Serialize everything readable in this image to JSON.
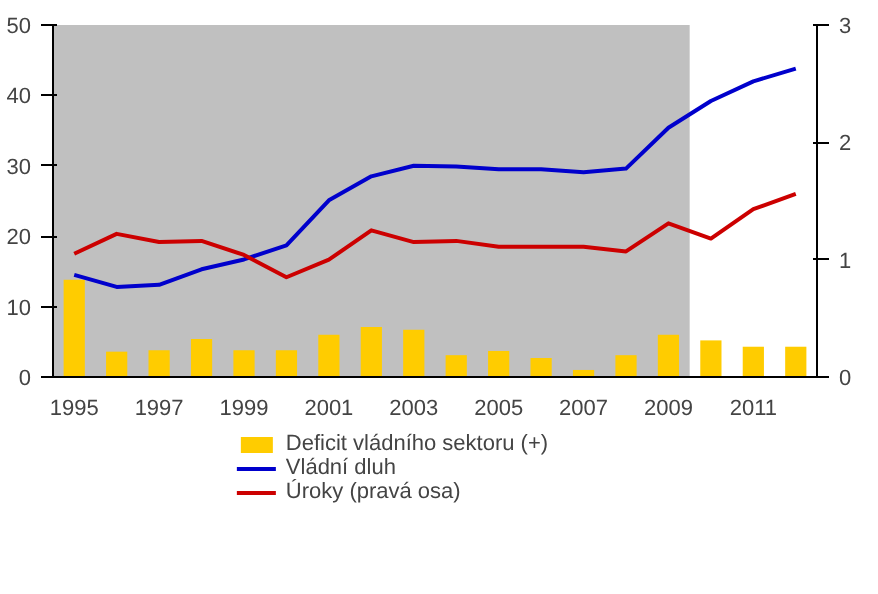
{
  "chart_data": {
    "type": "bar",
    "categories": [
      "1995",
      null,
      "1997",
      null,
      "1999",
      null,
      "2001",
      null,
      "2003",
      null,
      "2005",
      null,
      "2007",
      null,
      "2009",
      null,
      "2011",
      null
    ],
    "series": [
      {
        "name": "Deficit vládního sektoru (+)",
        "color": "#ffcc00",
        "values": [
          13.8,
          3.6,
          3.8,
          5.4,
          3.8,
          3.8,
          6.0,
          7.1,
          6.7,
          3.1,
          3.7,
          2.7,
          1.0,
          3.1,
          6.0,
          5.2,
          4.3,
          4.3
        ]
      },
      {
        "name": "Vládní dluh",
        "type": "line",
        "color": "#0000cc",
        "values": [
          14.5,
          12.8,
          13.1,
          15.3,
          16.7,
          18.7,
          25.1,
          28.5,
          30.0,
          29.9,
          29.5,
          29.5,
          29.1,
          29.6,
          35.4,
          39.2,
          42.0,
          43.8
        ]
      },
      {
        "name": "Úroky (pravá osa)",
        "type": "line",
        "axis": "y2",
        "color": "#cc0000",
        "values": [
          1.05,
          1.22,
          1.15,
          1.16,
          1.04,
          0.85,
          1.0,
          1.25,
          1.15,
          1.16,
          1.11,
          1.11,
          1.11,
          1.07,
          1.31,
          1.18,
          1.43,
          1.56
        ]
      }
    ],
    "ylim": [
      0,
      50
    ],
    "yticks": [
      0,
      10,
      20,
      30,
      40,
      50
    ],
    "y2lim": [
      0,
      3
    ],
    "y2ticks": [
      0,
      1,
      2,
      3
    ],
    "bands": [
      {
        "axis": "x",
        "from": "1995",
        "to": "2009",
        "color": "#c0c0c0"
      }
    ],
    "grid": false,
    "legend": "bottom"
  }
}
